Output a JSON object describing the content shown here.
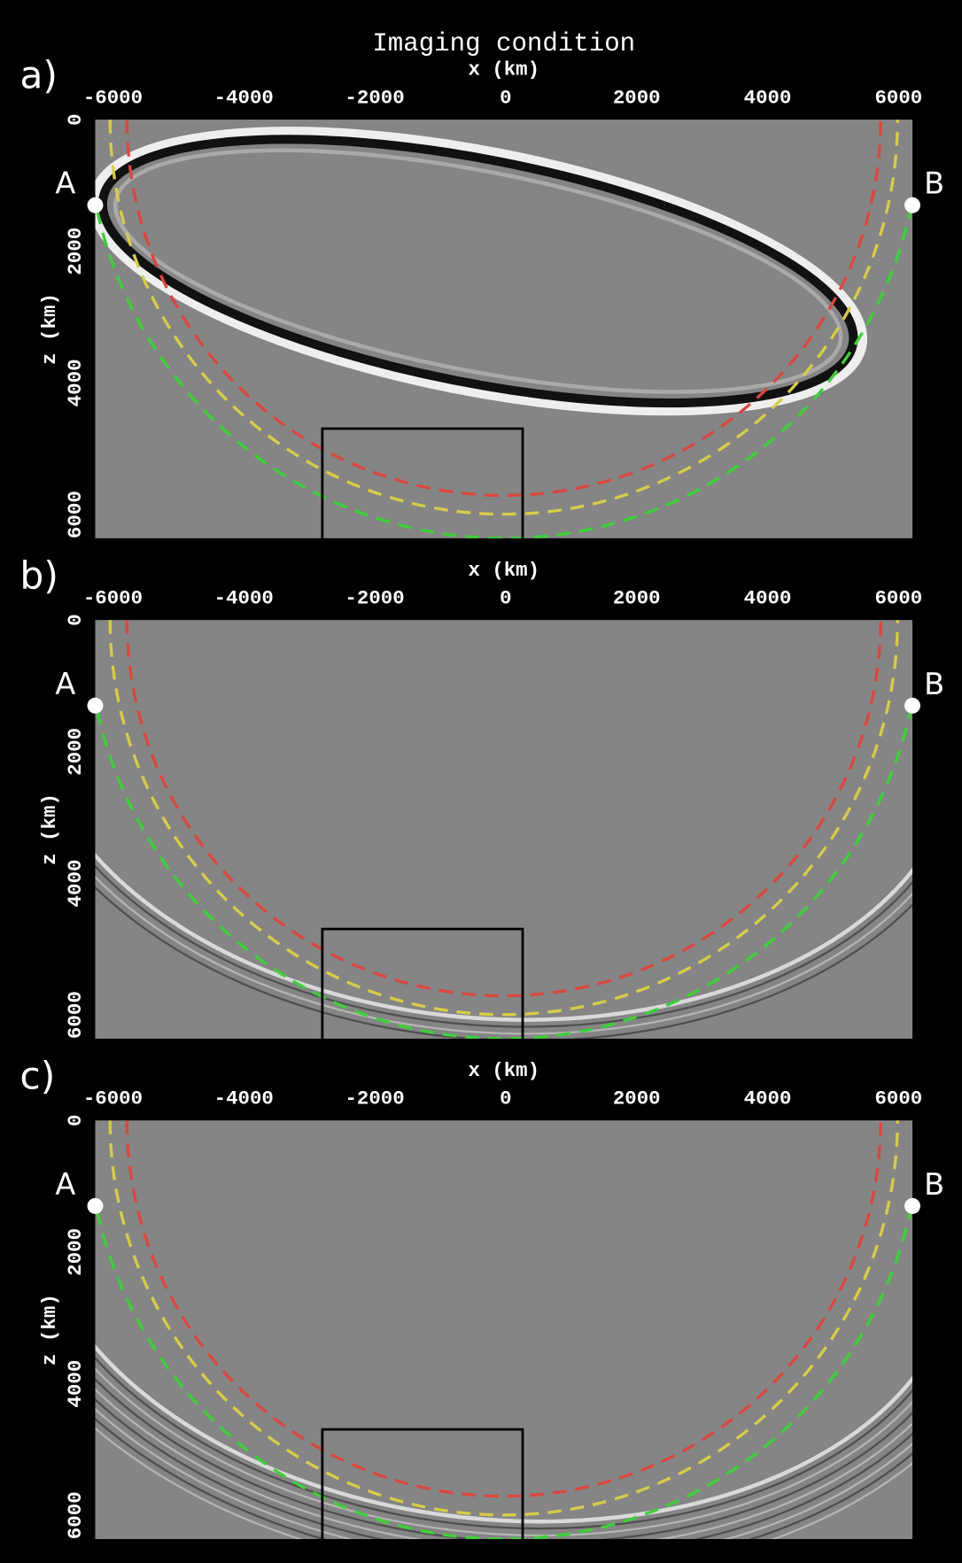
{
  "chart_data": [
    {
      "type": "image",
      "title": "Imaging condition",
      "panel_label": "a)",
      "xlabel": "x (km)",
      "ylabel": "z (km)",
      "xlim": [
        -6270,
        6212
      ],
      "ylim": [
        0,
        6360
      ],
      "xticks": [
        -6000,
        -4000,
        -2000,
        0,
        2000,
        4000,
        6000
      ],
      "yticks": [
        0,
        2000,
        4000,
        6000
      ],
      "points": [
        {
          "label": "A",
          "x": -6270,
          "z": 1300
        },
        {
          "label": "B",
          "x": 6212,
          "z": 1300
        }
      ]
    },
    {
      "type": "image",
      "panel_label": "b)",
      "xlabel": "x (km)",
      "ylabel": "z (km)",
      "xlim": [
        -6270,
        6212
      ],
      "ylim": [
        0,
        6360
      ],
      "xticks": [
        -6000,
        -4000,
        -2000,
        0,
        2000,
        4000,
        6000
      ],
      "yticks": [
        0,
        2000,
        4000,
        6000
      ],
      "points": [
        {
          "label": "A",
          "x": -6270,
          "z": 1300
        },
        {
          "label": "B",
          "x": 6212,
          "z": 1300
        }
      ]
    },
    {
      "type": "image",
      "panel_label": "c)",
      "xlabel": "x (km)",
      "ylabel": "z (km)",
      "xlim": [
        -6270,
        6212
      ],
      "ylim": [
        0,
        6360
      ],
      "xticks": [
        -6000,
        -4000,
        -2000,
        0,
        2000,
        4000,
        6000
      ],
      "yticks": [
        0,
        2000,
        4000,
        6000
      ],
      "points": [
        {
          "label": "A",
          "x": -6270,
          "z": 1300
        },
        {
          "label": "B",
          "x": 6212,
          "z": 1300
        }
      ]
    }
  ]
}
